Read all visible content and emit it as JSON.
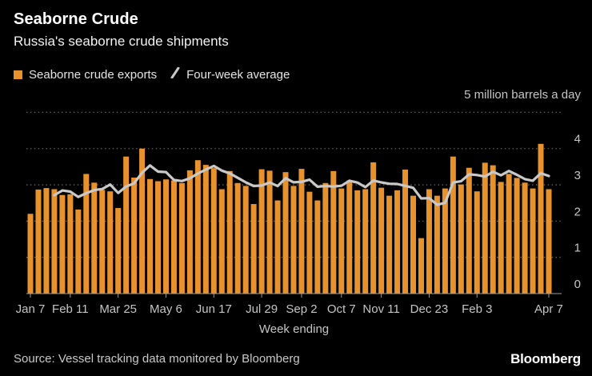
{
  "header": {
    "title": "Seaborne Crude",
    "subtitle": "Russia's seaborne crude shipments"
  },
  "legend": {
    "items": [
      {
        "label": "Seaborne crude exports",
        "marker": "square",
        "color": "#e8922e"
      },
      {
        "label": "Four-week average",
        "marker": "slash",
        "color": "#c9c9c9"
      }
    ]
  },
  "unit_label": "5 million barrels a day",
  "axis": {
    "x_title": "Week ending",
    "y_tick_labels": [
      "0",
      "1",
      "2",
      "3",
      "4"
    ]
  },
  "footer": {
    "source": "Source: Vessel tracking data monitored by Bloomberg",
    "logo": "Bloomberg"
  },
  "colors": {
    "background": "#000000",
    "bars": "#e8922e",
    "line": "#c9c9c9",
    "grid": "#606060",
    "axis": "#9b9b9b",
    "tick_labels": "#c5c5c5"
  },
  "chart_data": {
    "type": "bar",
    "title": "Seaborne Crude",
    "subtitle": "Russia's seaborne crude shipments",
    "xlabel": "Week ending",
    "ylabel": "million barrels a day",
    "ylim": [
      0,
      5
    ],
    "y_ticks": [
      0,
      1,
      2,
      3,
      4,
      5
    ],
    "grid": "horizontal-dotted",
    "legend_position": "top-left",
    "x_tick_labels": [
      "Jan 7",
      "Feb 11",
      "Mar 25",
      "May 6",
      "Jun 17",
      "Jul 29",
      "Sep 2",
      "Oct 7",
      "Nov 11",
      "Dec 23",
      "Feb 3",
      "Apr 7"
    ],
    "x_tick_indices": [
      0,
      5,
      11,
      17,
      23,
      29,
      34,
      39,
      44,
      50,
      56,
      65
    ],
    "series": [
      {
        "name": "Seaborne crude exports",
        "type": "bar",
        "color": "#e8922e",
        "unit": "million barrels a day",
        "values": [
          2.2,
          2.87,
          2.91,
          2.88,
          2.72,
          2.74,
          2.32,
          3.3,
          3.06,
          2.86,
          2.82,
          2.36,
          3.78,
          3.2,
          4.0,
          3.16,
          3.1,
          3.15,
          3.12,
          3.05,
          3.4,
          3.68,
          3.55,
          3.46,
          2.88,
          3.38,
          3.05,
          2.97,
          2.47,
          3.43,
          3.39,
          2.57,
          3.35,
          2.97,
          3.44,
          2.81,
          2.57,
          3.05,
          3.38,
          2.9,
          3.12,
          2.85,
          2.88,
          3.62,
          2.92,
          2.7,
          2.85,
          3.42,
          2.7,
          1.53,
          2.88,
          2.7,
          2.9,
          3.78,
          3.01,
          3.47,
          2.82,
          3.61,
          3.54,
          3.08,
          3.3,
          3.19,
          3.06,
          2.9,
          4.13,
          2.88
        ]
      },
      {
        "name": "Four-week average",
        "type": "line",
        "color": "#c9c9c9",
        "derived": true,
        "derivation": "trailing 4-week mean of Seaborne crude exports",
        "window": 4
      }
    ]
  }
}
